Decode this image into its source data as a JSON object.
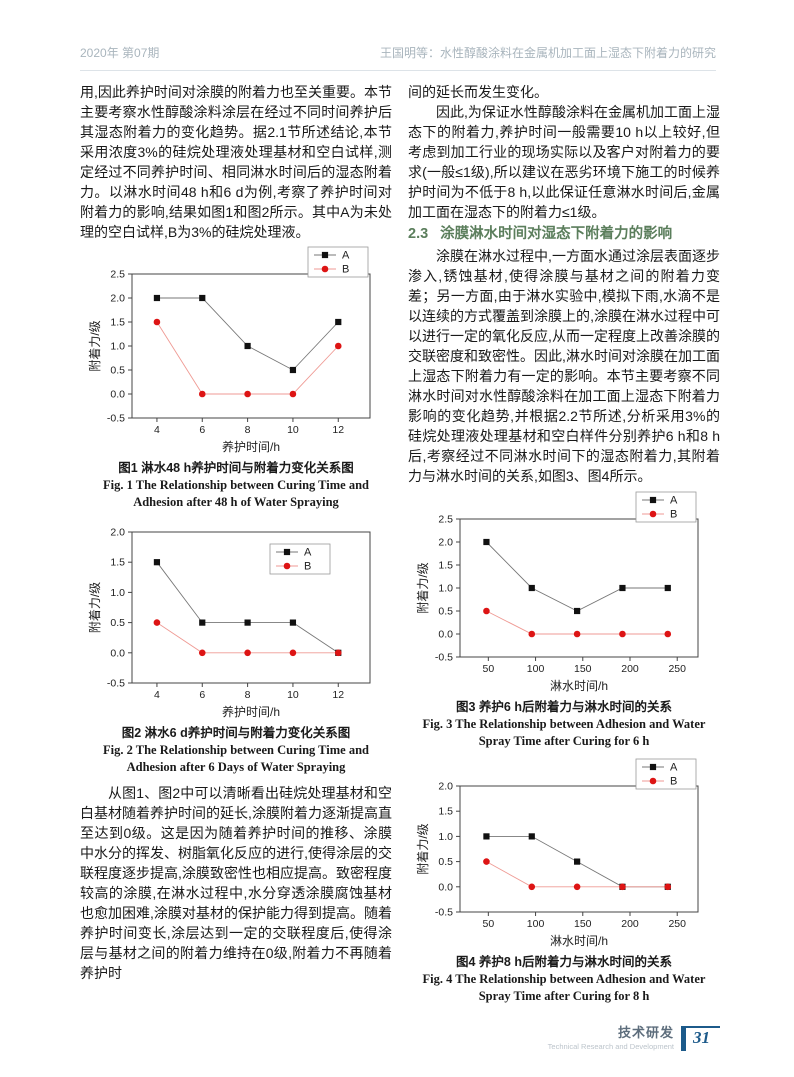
{
  "header": {
    "issue": "2020年  第07期",
    "running_title": "王国明等：水性醇酸涂料在金属机加工面上湿态下附着力的研究"
  },
  "left_column": {
    "para1": "用,因此养护时间对涂膜的附着力也至关重要。本节主要考察水性醇酸涂料涂层在经过不同时间养护后其湿态附着力的变化趋势。据2.1节所述结论,本节采用浓度3%的硅烷处理液处理基材和空白试样,测定经过不同养护时间、相同淋水时间后的湿态附着力。以淋水时间48 h和6 d为例,考察了养护时间对附着力的影响,结果如图1和图2所示。其中A为未处理的空白试样,B为3%的硅烷处理液。",
    "para2": "从图1、图2中可以清晰看出硅烷处理基材和空白基材随着养护时间的延长,涂膜附着力逐渐提高直至达到0级。这是因为随着养护时间的推移、涂膜中水分的挥发、树脂氧化反应的进行,使得涂层的交联程度逐步提高,涂膜致密性也相应提高。致密程度较高的涂膜,在淋水过程中,水分穿透涂膜腐蚀基材也愈加困难,涂膜对基材的保护能力得到提高。随着养护时间变长,涂层达到一定的交联程度后,使得涂层与基材之间的附着力维持在0级,附着力不再随着养护时"
  },
  "right_column": {
    "para1": "间的延长而发生变化。",
    "para2": "因此,为保证水性醇酸涂料在金属机加工面上湿态下的附着力,养护时间一般需要10 h以上较好,但考虑到加工行业的现场实际以及客户对附着力的要求(一般≤1级),所以建议在恶劣环境下施工的时候养护时间为不低于8 h,以此保证任意淋水时间后,金属加工面在湿态下的附着力≤1级。",
    "section_number": "2.3",
    "section_title": "涂膜淋水时间对湿态下附着力的影响",
    "section_color": "#5b7e5c",
    "para3": "涂膜在淋水过程中,一方面水通过涂层表面逐步渗入,锈蚀基材,使得涂膜与基材之间的附着力变差；另一方面,由于淋水实验中,模拟下雨,水滴不是以连续的方式覆盖到涂膜上的,涂膜在淋水过程中可以进行一定的氧化反应,从而一定程度上改善涂膜的交联密度和致密性。因此,淋水时间对涂膜在加工面上湿态下附着力有一定的影响。本节主要考察不同淋水时间对水性醇酸涂料在加工面上湿态下附着力影响的变化趋势,并根据2.2节所述,分析采用3%的硅烷处理液处理基材和空白样件分别养护6 h和8 h后,考察经过不同淋水时间下的湿态附着力,其附着力与淋水时间的关系,如图3、图4所示。"
  },
  "figures": [
    {
      "caption_cn": "图1  淋水48 h养护时间与附着力变化关系图",
      "caption_en1": "Fig. 1    The Relationship between Curing Time and",
      "caption_en2": "Adhesion after 48 h of Water Spraying"
    },
    {
      "caption_cn": "图2  淋水6 d养护时间与附着力变化关系图",
      "caption_en1": "Fig. 2   The Relationship between Curing Time and",
      "caption_en2": "Adhesion after 6 Days of Water Spraying"
    },
    {
      "caption_cn": "图3  养护6 h后附着力与淋水时间的关系",
      "caption_en1": "Fig. 3   The Relationship between Adhesion and Water",
      "caption_en2": "Spray Time after Curing for 6 h"
    },
    {
      "caption_cn": "图4  养护8 h后附着力与淋水时间的关系",
      "caption_en1": "Fig. 4    The Relationship between Adhesion and Water",
      "caption_en2": "Spray Time after Curing for 8 h"
    }
  ],
  "chart_data": [
    {
      "type": "line",
      "title": "淋水48 h养护时间与附着力变化关系",
      "xlabel": "养护时间/h",
      "ylabel": "附着力/级",
      "xlim": [
        2.9,
        13.4
      ],
      "ylim": [
        -0.5,
        2.5
      ],
      "xticks": [
        4,
        6,
        8,
        10,
        12
      ],
      "yticks": [
        -0.5,
        0.0,
        0.5,
        1.0,
        1.5,
        2.0,
        2.5
      ],
      "grid": false,
      "legend_position": "outside-top-right",
      "series": [
        {
          "name": "A",
          "marker": "square",
          "color": "#111111",
          "line_color": "#777777",
          "x": [
            4,
            6,
            8,
            10,
            12
          ],
          "y": [
            2.0,
            2.0,
            1.0,
            0.5,
            1.5
          ]
        },
        {
          "name": "B",
          "marker": "circle",
          "color": "#dd1414",
          "line_color": "#ef9a94",
          "x": [
            4,
            6,
            8,
            10,
            12
          ],
          "y": [
            1.5,
            0.0,
            0.0,
            0.0,
            1.0
          ]
        }
      ]
    },
    {
      "type": "line",
      "title": "淋水6 d养护时间与附着力变化关系",
      "xlabel": "养护时间/h",
      "ylabel": "附着力/级",
      "xlim": [
        2.9,
        13.4
      ],
      "ylim": [
        -0.5,
        2.0
      ],
      "xticks": [
        4,
        6,
        8,
        10,
        12
      ],
      "yticks": [
        -0.5,
        0.0,
        0.5,
        1.0,
        1.5,
        2.0
      ],
      "grid": false,
      "legend_position": "inside-top-right",
      "series": [
        {
          "name": "A",
          "marker": "square",
          "color": "#111111",
          "line_color": "#777777",
          "x": [
            4,
            6,
            8,
            10,
            12
          ],
          "y": [
            1.5,
            0.5,
            0.5,
            0.5,
            0.0
          ]
        },
        {
          "name": "B",
          "marker": "circle",
          "color": "#dd1414",
          "line_color": "#ef9a94",
          "x": [
            4,
            6,
            8,
            10,
            12
          ],
          "y": [
            0.5,
            0.0,
            0.0,
            0.0,
            0.0
          ]
        }
      ]
    },
    {
      "type": "line",
      "title": "养护6 h后附着力与淋水时间的关系",
      "xlabel": "淋水时间/h",
      "ylabel": "附着力/级",
      "xlim": [
        20,
        272
      ],
      "ylim": [
        -0.5,
        2.5
      ],
      "xticks": [
        50,
        100,
        150,
        200,
        250
      ],
      "yticks": [
        -0.5,
        0.0,
        0.5,
        1.0,
        1.5,
        2.0,
        2.5
      ],
      "grid": false,
      "legend_position": "outside-top-right",
      "series": [
        {
          "name": "A",
          "marker": "square",
          "color": "#111111",
          "line_color": "#777777",
          "x": [
            48,
            96,
            144,
            192,
            240
          ],
          "y": [
            2.0,
            1.0,
            0.5,
            1.0,
            1.0
          ]
        },
        {
          "name": "B",
          "marker": "circle",
          "color": "#dd1414",
          "line_color": "#ef9a94",
          "x": [
            48,
            96,
            144,
            192,
            240
          ],
          "y": [
            0.5,
            0.0,
            0.0,
            0.0,
            0.0
          ]
        }
      ]
    },
    {
      "type": "line",
      "title": "养护8 h后附着力与淋水时间的关系",
      "xlabel": "淋水时间/h",
      "ylabel": "附着力/级",
      "xlim": [
        20,
        272
      ],
      "ylim": [
        -0.5,
        2.0
      ],
      "xticks": [
        50,
        100,
        150,
        200,
        250
      ],
      "yticks": [
        -0.5,
        0.0,
        0.5,
        1.0,
        1.5,
        2.0
      ],
      "grid": false,
      "legend_position": "outside-top-right",
      "series": [
        {
          "name": "A",
          "marker": "square",
          "color": "#111111",
          "line_color": "#777777",
          "x": [
            48,
            96,
            144,
            192,
            240
          ],
          "y": [
            1.0,
            1.0,
            0.5,
            0.0,
            0.0
          ]
        },
        {
          "name": "B",
          "marker": "circle",
          "color": "#dd1414",
          "line_color": "#ef9a94",
          "x": [
            48,
            96,
            144,
            192,
            240
          ],
          "y": [
            0.5,
            0.0,
            0.0,
            0.0,
            0.0
          ]
        }
      ]
    }
  ],
  "footer": {
    "label_cn": "技术研发",
    "label_en": "Technical Research and Development",
    "page_number": "31",
    "accent_color": "#1c5a8a",
    "label_cn_color": "#5d6d7c",
    "label_en_color": "#bcc4cb"
  },
  "colors": {
    "header_text": "#a9b5bd",
    "body_text": "#191919",
    "section_heading": "#5b7e5c",
    "series_a": "#111111",
    "series_b": "#dd1414"
  }
}
